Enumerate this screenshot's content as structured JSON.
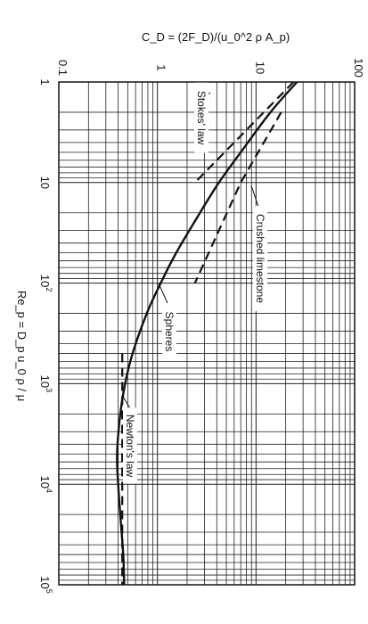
{
  "chart_data": {
    "type": "line",
    "title": "",
    "xlabel": "Re_p = D_p u_0 ρ / μ",
    "ylabel": "C_D = (2F_D)/(u_0^2 ρ A_p)",
    "x_scale": "log",
    "y_scale": "log",
    "xlim": [
      1,
      100000
    ],
    "ylim": [
      0.1,
      100
    ],
    "grid": true,
    "orientation": "rotated-90-clockwise",
    "x_ticks": [
      {
        "value": 1,
        "label": "1"
      },
      {
        "value": 10,
        "label": "10"
      },
      {
        "value": 100,
        "label": "10",
        "sup": "2"
      },
      {
        "value": 1000,
        "label": "10",
        "sup": "3"
      },
      {
        "value": 10000,
        "label": "10",
        "sup": "4"
      },
      {
        "value": 100000,
        "label": "10",
        "sup": "5"
      }
    ],
    "y_ticks": [
      {
        "value": 0.1,
        "label": "0.1"
      },
      {
        "value": 1,
        "label": "1"
      },
      {
        "value": 10,
        "label": "10"
      },
      {
        "value": 100,
        "label": "100"
      }
    ],
    "series": [
      {
        "name": "Spheres",
        "style": "solid",
        "x": [
          1,
          2,
          5,
          10,
          20,
          50,
          100,
          200,
          500,
          1000,
          2000,
          5000,
          10000,
          20000,
          50000,
          100000
        ],
        "y": [
          26,
          14,
          7,
          4.2,
          2.7,
          1.55,
          1.08,
          0.78,
          0.56,
          0.47,
          0.42,
          0.39,
          0.4,
          0.42,
          0.45,
          0.46
        ]
      },
      {
        "name": "Crushed limestone",
        "style": "dashed",
        "x": [
          2,
          10,
          100
        ],
        "y": [
          18,
          7,
          2.4
        ]
      },
      {
        "name": "Stokes' law",
        "style": "dashed",
        "x": [
          1,
          10
        ],
        "y": [
          24,
          2.4
        ]
      },
      {
        "name": "Newton's law",
        "style": "dashed",
        "x": [
          500,
          100000
        ],
        "y": [
          0.44,
          0.44
        ]
      }
    ],
    "annotations": [
      {
        "text": "Stokes' law"
      },
      {
        "text": "Crushed limestone"
      },
      {
        "text": "Spheres"
      },
      {
        "text": "Newton's law"
      }
    ]
  }
}
